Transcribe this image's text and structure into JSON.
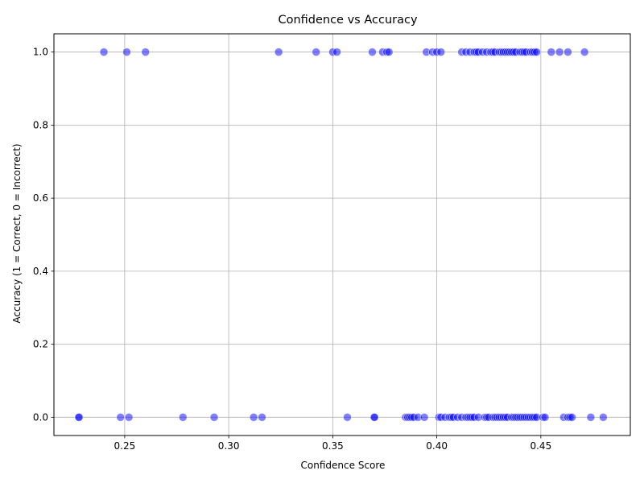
{
  "chart_data": {
    "type": "scatter",
    "title": "Confidence vs Accuracy",
    "xlabel": "Confidence Score",
    "ylabel": "Accuracy (1 = Correct, 0 = Incorrect)",
    "xlim": [
      0.216,
      0.493
    ],
    "ylim": [
      -0.05,
      1.05
    ],
    "x_ticks": [
      0.25,
      0.3,
      0.35,
      0.4,
      0.45
    ],
    "x_tick_labels": [
      "0.25",
      "0.30",
      "0.35",
      "0.40",
      "0.45"
    ],
    "y_ticks": [
      0.0,
      0.2,
      0.4,
      0.6,
      0.8,
      1.0
    ],
    "y_tick_labels": [
      "0.0",
      "0.2",
      "0.4",
      "0.6",
      "0.8",
      "1.0"
    ],
    "grid": true,
    "marker_color": "#0000ff",
    "marker_alpha": 0.5,
    "series": [
      {
        "x": [
          0.24,
          0.251,
          0.26,
          0.324,
          0.342,
          0.35,
          0.352,
          0.369,
          0.374,
          0.376,
          0.377,
          0.395,
          0.398,
          0.4,
          0.402,
          0.412,
          0.414,
          0.416,
          0.418,
          0.419,
          0.42,
          0.422,
          0.424,
          0.426,
          0.427,
          0.428,
          0.43,
          0.431,
          0.432,
          0.433,
          0.434,
          0.435,
          0.436,
          0.437,
          0.438,
          0.44,
          0.441,
          0.442,
          0.443,
          0.445,
          0.446,
          0.447,
          0.448,
          0.455,
          0.459,
          0.463,
          0.471
        ],
        "y": [
          1,
          1,
          1,
          1,
          1,
          1,
          1,
          1,
          1,
          1,
          1,
          1,
          1,
          1,
          1,
          1,
          1,
          1,
          1,
          1,
          1,
          1,
          1,
          1,
          1,
          1,
          1,
          1,
          1,
          1,
          1,
          1,
          1,
          1,
          1,
          1,
          1,
          1,
          1,
          1,
          1,
          1,
          1,
          1,
          1,
          1,
          1
        ]
      },
      {
        "x": [
          0.228,
          0.228,
          0.248,
          0.252,
          0.278,
          0.293,
          0.312,
          0.316,
          0.357,
          0.37,
          0.37,
          0.385,
          0.386,
          0.387,
          0.388,
          0.389,
          0.391,
          0.394,
          0.401,
          0.402,
          0.404,
          0.406,
          0.407,
          0.408,
          0.41,
          0.412,
          0.414,
          0.415,
          0.416,
          0.417,
          0.418,
          0.42,
          0.423,
          0.424,
          0.425,
          0.427,
          0.428,
          0.429,
          0.43,
          0.431,
          0.432,
          0.433,
          0.434,
          0.436,
          0.437,
          0.438,
          0.439,
          0.44,
          0.441,
          0.442,
          0.443,
          0.444,
          0.445,
          0.446,
          0.447,
          0.448,
          0.451,
          0.452,
          0.461,
          0.463,
          0.464,
          0.465,
          0.474,
          0.48
        ],
        "y": [
          0,
          0,
          0,
          0,
          0,
          0,
          0,
          0,
          0,
          0,
          0,
          0,
          0,
          0,
          0,
          0,
          0,
          0,
          0,
          0,
          0,
          0,
          0,
          0,
          0,
          0,
          0,
          0,
          0,
          0,
          0,
          0,
          0,
          0,
          0,
          0,
          0,
          0,
          0,
          0,
          0,
          0,
          0,
          0,
          0,
          0,
          0,
          0,
          0,
          0,
          0,
          0,
          0,
          0,
          0,
          0,
          0,
          0,
          0,
          0,
          0,
          0,
          0,
          0
        ]
      }
    ]
  }
}
